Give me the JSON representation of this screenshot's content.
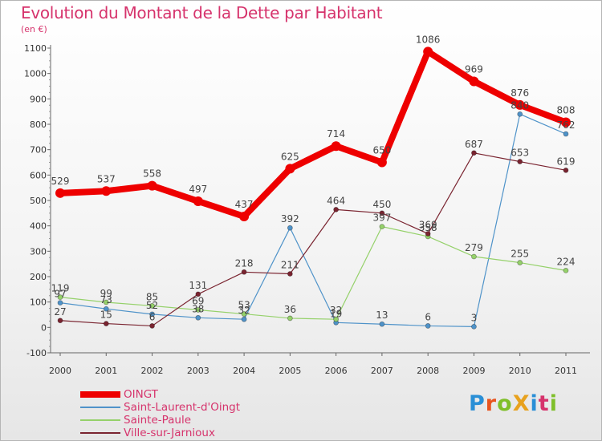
{
  "header": {
    "title": "Evolution du Montant de la Dette par Habitant",
    "unit": "(en €)"
  },
  "brand": {
    "text": "ProXiti",
    "colors": [
      "#2a8fd6",
      "#e8541e",
      "#7fbf2a",
      "#e8a21e",
      "#2a8fd6",
      "#d6336c",
      "#7fbf2a"
    ]
  },
  "chart_data": {
    "type": "line",
    "x": [
      "2000",
      "2001",
      "2002",
      "2003",
      "2004",
      "2005",
      "2006",
      "2007",
      "2008",
      "2009",
      "2010",
      "2011"
    ],
    "ylim": [
      -100,
      1100
    ],
    "yticks": [
      -100,
      0,
      100,
      200,
      300,
      400,
      500,
      600,
      700,
      800,
      900,
      1000,
      1100
    ],
    "grid": false,
    "legend_position": "bottom-left",
    "series": [
      {
        "name": "Saint-Laurent-d'Oingt",
        "color": "#4f93c9",
        "width": 1.2,
        "values": [
          97,
          73,
          52,
          38,
          32,
          392,
          19,
          13,
          6,
          3,
          840,
          762
        ],
        "labels": [
          "97",
          "73",
          "52",
          "38",
          "32",
          "392",
          "19",
          "13",
          "6",
          "3",
          "840",
          "762"
        ]
      },
      {
        "name": "Sainte-Paule",
        "color": "#95d16a",
        "width": 1.2,
        "values": [
          119,
          99,
          85,
          69,
          53,
          36,
          32,
          397,
          358,
          279,
          255,
          224
        ],
        "labels": [
          "119",
          "99",
          "85",
          "69",
          "53",
          "36",
          "32",
          "397",
          "358",
          "279",
          "255",
          "224"
        ]
      },
      {
        "name": "Ville-sur-Jarnioux",
        "color": "#7a2430",
        "width": 1.2,
        "values": [
          27,
          15,
          6,
          131,
          218,
          211,
          464,
          450,
          369,
          687,
          653,
          619
        ],
        "labels": [
          "27",
          "15",
          "6",
          "131",
          "218",
          "211",
          "464",
          "450",
          "369",
          "687",
          "653",
          "619"
        ]
      },
      {
        "name": "OINGT",
        "color": "#ee0000",
        "width": 8,
        "values": [
          529,
          537,
          558,
          497,
          437,
          625,
          714,
          650,
          1086,
          969,
          876,
          808
        ],
        "labels": [
          "529",
          "537",
          "558",
          "497",
          "437",
          "625",
          "714",
          "650",
          "1086",
          "969",
          "876",
          "808"
        ]
      }
    ]
  },
  "legend": [
    {
      "name": "OINGT",
      "color": "#ee0000",
      "width": 8
    },
    {
      "name": "Saint-Laurent-d'Oingt",
      "color": "#4f93c9",
      "width": 1.5
    },
    {
      "name": "Sainte-Paule",
      "color": "#95d16a",
      "width": 1.5
    },
    {
      "name": "Ville-sur-Jarnioux",
      "color": "#7a2430",
      "width": 1.5
    }
  ]
}
